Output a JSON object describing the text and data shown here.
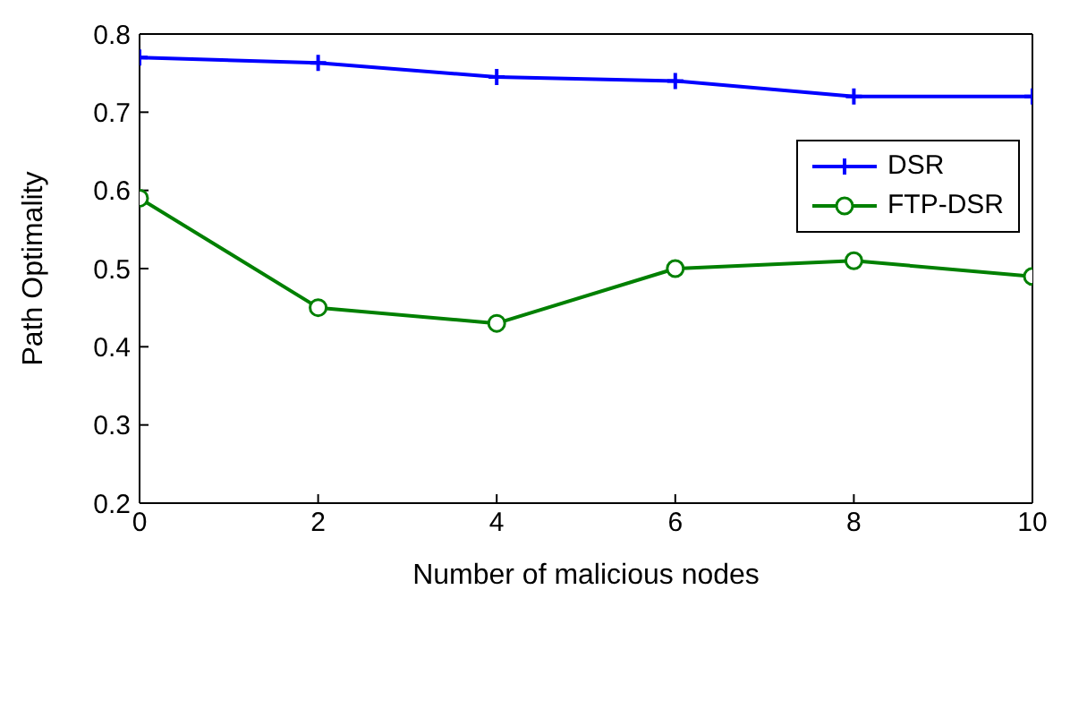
{
  "chart_data": {
    "type": "line",
    "xlabel": "Number of malicious nodes",
    "ylabel": "Path Optimality",
    "x": [
      0,
      2,
      4,
      6,
      8,
      10
    ],
    "series": [
      {
        "name": "DSR",
        "color": "#0000ff",
        "marker": "cross",
        "values": [
          0.77,
          0.763,
          0.745,
          0.74,
          0.72,
          0.72
        ]
      },
      {
        "name": "FTP-DSR",
        "color": "#008000",
        "marker": "circle",
        "values": [
          0.59,
          0.45,
          0.43,
          0.5,
          0.51,
          0.49
        ]
      }
    ],
    "xlim": [
      0,
      10
    ],
    "xticks": [
      0,
      2,
      4,
      6,
      8,
      10
    ],
    "ylim": [
      0.2,
      0.8
    ],
    "yticks": [
      0.2,
      0.3,
      0.4,
      0.5,
      0.6,
      0.7,
      0.8
    ],
    "grid": false,
    "legend": "top right",
    "line_style": "solid"
  }
}
